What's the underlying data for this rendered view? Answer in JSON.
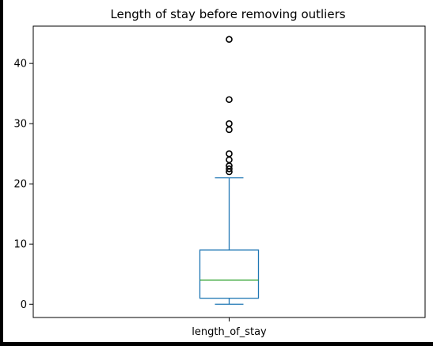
{
  "chart_data": {
    "type": "box",
    "title": "Length of stay before removing outliers",
    "xlabel": "",
    "ylabel": "",
    "categories": [
      "length_of_stay"
    ],
    "ylim": [
      -2.2,
      46.2
    ],
    "yticks": [
      0,
      10,
      20,
      30,
      40
    ],
    "grid": false,
    "box": {
      "min": 0,
      "q1": 1,
      "median": 4,
      "q3": 9,
      "max": 21
    },
    "outliers": [
      22,
      22.5,
      23,
      24,
      25,
      29,
      30,
      34,
      44
    ]
  },
  "colors": {
    "box": "#1f77b4",
    "median": "#2ca02c",
    "outlier": "#000000",
    "axes": "#000000"
  }
}
